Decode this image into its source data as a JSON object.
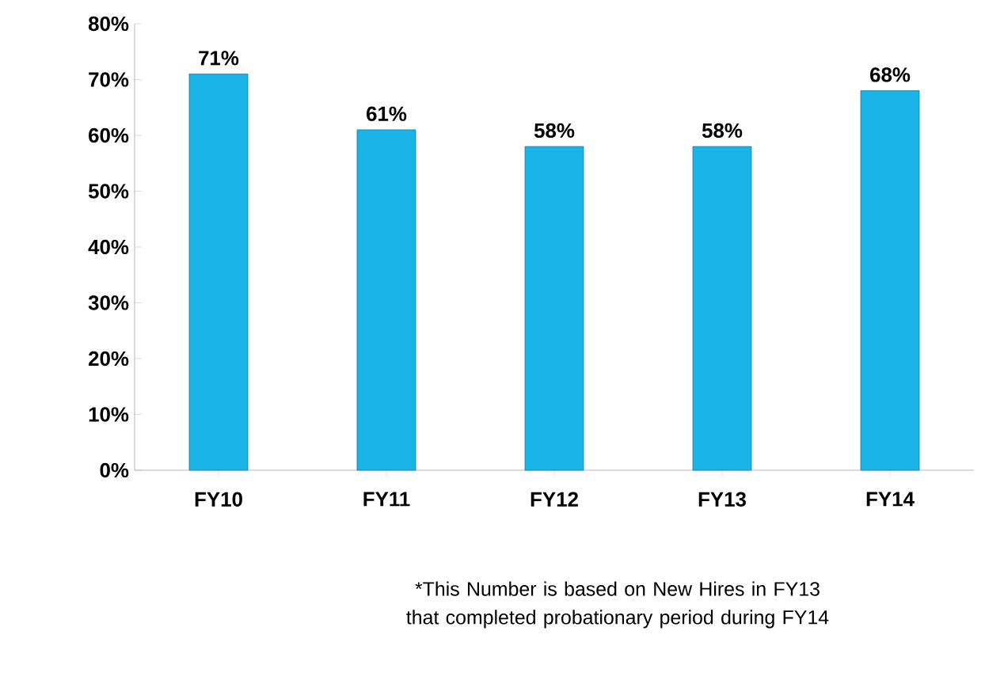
{
  "chart_data": {
    "type": "bar",
    "categories": [
      "FY10",
      "FY11",
      "FY12",
      "FY13",
      "FY14"
    ],
    "values": [
      71,
      61,
      58,
      58,
      68
    ],
    "value_labels": [
      "71%",
      "61%",
      "58%",
      "58%",
      "68%"
    ],
    "color": "#1ab4e8",
    "ylim": [
      0,
      80
    ],
    "yticks": [
      {
        "value": 0,
        "label": "0%"
      },
      {
        "value": 10,
        "label": "10%"
      },
      {
        "value": 20,
        "label": "20%"
      },
      {
        "value": 30,
        "label": "30%"
      },
      {
        "value": 40,
        "label": "40%"
      },
      {
        "value": 50,
        "label": "50%"
      },
      {
        "value": 60,
        "label": "60%"
      },
      {
        "value": 70,
        "label": "70%"
      },
      {
        "value": 80,
        "label": "80%"
      }
    ],
    "grid": false,
    "annotations": [
      "*This Number is based on New Hires in FY13 that completed probationary period during FY14"
    ]
  }
}
